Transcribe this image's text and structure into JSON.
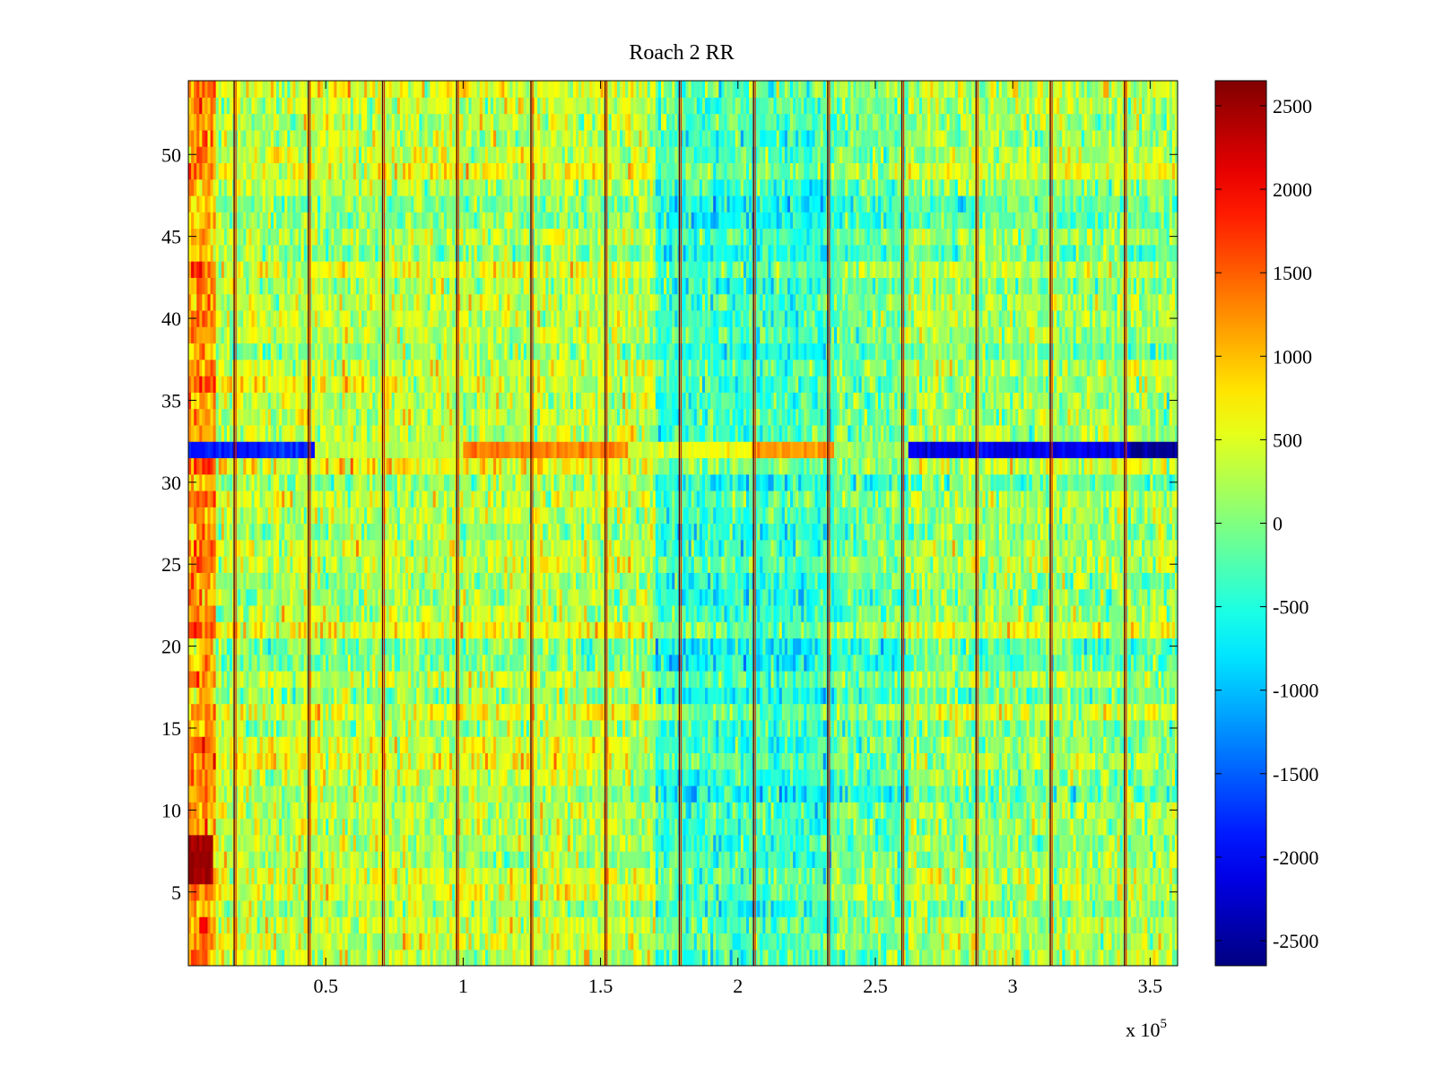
{
  "chart_data": {
    "type": "heatmap",
    "title": "Roach 2 RR",
    "xlabel": "",
    "ylabel": "",
    "x_exponent_label": "x 10",
    "x_exponent_power": "5",
    "xlim": [
      0,
      3.6
    ],
    "ylim": [
      0.5,
      54.5
    ],
    "xticks": [
      0.5,
      1,
      1.5,
      2,
      2.5,
      3,
      3.5
    ],
    "xtick_labels": [
      "0.5",
      "1",
      "1.5",
      "2",
      "2.5",
      "3",
      "3.5"
    ],
    "yticks": [
      5,
      10,
      15,
      20,
      25,
      30,
      35,
      40,
      45,
      50
    ],
    "ytick_labels": [
      "5",
      "10",
      "15",
      "20",
      "25",
      "30",
      "35",
      "40",
      "45",
      "50"
    ],
    "n_rows": 54,
    "n_cols": 360,
    "colormap": "jet",
    "clim": [
      -2650,
      2650
    ],
    "colorbar_ticks": [
      2500,
      2000,
      1500,
      1000,
      500,
      0,
      -500,
      -1000,
      -1500,
      -2000,
      -2500
    ],
    "colorbar_labels": [
      "2500",
      "2000",
      "1500",
      "1000",
      "500",
      "0",
      "-500",
      "-1000",
      "-1500",
      "-2000",
      "-2500"
    ],
    "vertical_artifact_lines_x": [
      0.17,
      0.44,
      0.71,
      0.98,
      1.25,
      1.52,
      1.79,
      2.06,
      2.33,
      2.6,
      2.87,
      3.14,
      3.41
    ],
    "row_32_segments": [
      {
        "x_start": 0.0,
        "x_end": 0.46,
        "value": -1800
      },
      {
        "x_start": 0.46,
        "x_end": 1.0,
        "value": 300
      },
      {
        "x_start": 1.0,
        "x_end": 1.6,
        "value": 1300
      },
      {
        "x_start": 1.6,
        "x_end": 1.8,
        "value": 400
      },
      {
        "x_start": 1.8,
        "x_end": 2.05,
        "value": 600
      },
      {
        "x_start": 2.05,
        "x_end": 2.35,
        "value": 1200
      },
      {
        "x_start": 2.35,
        "x_end": 2.62,
        "value": 100
      },
      {
        "x_start": 2.62,
        "x_end": 3.42,
        "value": -2100
      },
      {
        "x_start": 3.42,
        "x_end": 3.6,
        "value": -2600
      }
    ],
    "hotspot": {
      "x_start": 0.0,
      "x_end": 0.09,
      "y_start": 6,
      "y_end": 8,
      "value": 2600
    },
    "regional_means": [
      {
        "x_start": 0.0,
        "x_end": 0.1,
        "value": 900
      },
      {
        "x_start": 0.1,
        "x_end": 1.7,
        "value": 250
      },
      {
        "x_start": 1.7,
        "x_end": 2.35,
        "value": -400
      },
      {
        "x_start": 2.35,
        "x_end": 2.62,
        "value": -150
      },
      {
        "x_start": 2.62,
        "x_end": 3.6,
        "value": 100
      }
    ]
  }
}
